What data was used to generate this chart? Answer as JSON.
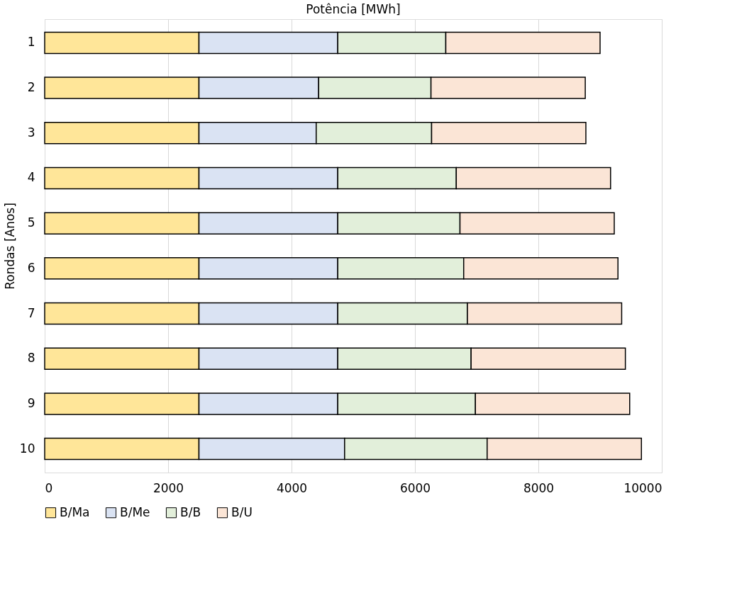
{
  "chart_data": {
    "type": "bar",
    "orientation": "horizontal",
    "stacked": true,
    "title": "Potência [MWh]",
    "ylabel": "Rondas [Anos]",
    "categories": [
      "1",
      "2",
      "3",
      "4",
      "5",
      "6",
      "7",
      "8",
      "9",
      "10"
    ],
    "series": [
      {
        "name": "B/Ma",
        "color": "#ffe699",
        "values": [
          2500,
          2500,
          2500,
          2500,
          2500,
          2500,
          2500,
          2500,
          2500,
          2500
        ]
      },
      {
        "name": "B/Me",
        "color": "#dae3f3",
        "values": [
          2250,
          1940,
          1900,
          2250,
          2250,
          2250,
          2250,
          2250,
          2250,
          2360
        ]
      },
      {
        "name": "B/B",
        "color": "#e2efda",
        "values": [
          1750,
          1820,
          1870,
          1920,
          1980,
          2040,
          2100,
          2160,
          2230,
          2310
        ]
      },
      {
        "name": "B/U",
        "color": "#fbe5d6",
        "values": [
          2500,
          2500,
          2500,
          2500,
          2500,
          2500,
          2500,
          2500,
          2500,
          2500
        ]
      }
    ],
    "xlim": [
      0,
      10000
    ],
    "xticks": [
      0,
      2000,
      4000,
      6000,
      8000,
      10000
    ],
    "grid": "x",
    "legend": "bottom"
  }
}
